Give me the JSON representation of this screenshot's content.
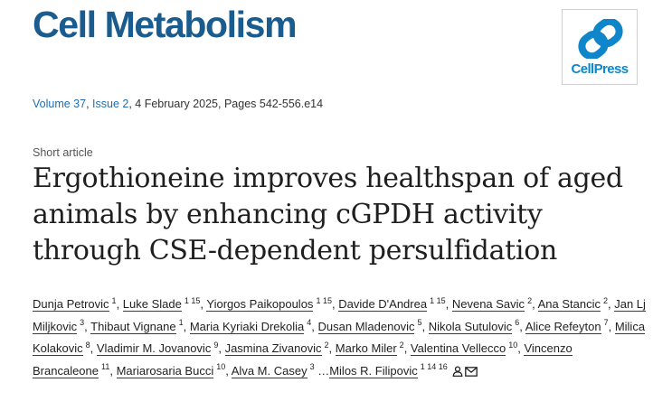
{
  "journal": {
    "title": "Cell Metabolism",
    "publisher_logo_text": "CellPress"
  },
  "issue": {
    "volume": "Volume 37",
    "issue": "Issue 2",
    "details": ", 4 February 2025, Pages 542-556.e14"
  },
  "article": {
    "type": "Short article",
    "title": "Ergothioneine improves healthspan of aged animals by enhancing cGPDH activity through CSE-dependent persulfidation"
  },
  "authors": [
    {
      "name": "Dunja Petrovic",
      "aff": "1"
    },
    {
      "name": "Luke Slade",
      "aff": "1 15"
    },
    {
      "name": "Yiorgos Paikopoulos",
      "aff": "1 15"
    },
    {
      "name": "Davide D'Andrea",
      "aff": "1 15"
    },
    {
      "name": "Nevena Savic",
      "aff": "2"
    },
    {
      "name": "Ana Stancic",
      "aff": "2"
    },
    {
      "name": "Jan Lj Miljkovic",
      "aff": "3"
    },
    {
      "name": "Thibaut Vignane",
      "aff": "1"
    },
    {
      "name": "Maria Kyriaki Drekolia",
      "aff": "4"
    },
    {
      "name": "Dusan Mladenovic",
      "aff": "5"
    },
    {
      "name": "Nikola Sutulovic",
      "aff": "6"
    },
    {
      "name": "Alice Refeyton",
      "aff": "7"
    },
    {
      "name": "Milica Kolakovic",
      "aff": "8"
    },
    {
      "name": "Vladimir M. Jovanovic",
      "aff": "9"
    },
    {
      "name": "Jasmina Zivanovic",
      "aff": "2"
    },
    {
      "name": "Marko Miler",
      "aff": "2"
    },
    {
      "name": "Valentina Vellecco",
      "aff": "10"
    },
    {
      "name": "Vincenzo Brancaleone",
      "aff": "11"
    },
    {
      "name": "Mariarosaria Bucci",
      "aff": "10"
    },
    {
      "name": "Alva M. Casey",
      "aff": "3"
    },
    {
      "name": "Milos R. Filipovic",
      "aff": "1 14 16"
    }
  ],
  "authors_ellipsis": "…",
  "icons": {
    "logo": "cellpress-logo-icon",
    "author_profile": "person-icon",
    "author_email": "envelope-icon"
  },
  "colors": {
    "journal_title": "#1a5c8e",
    "logo_blue": "#0f86c9",
    "link_blue": "#1f6fb0"
  }
}
